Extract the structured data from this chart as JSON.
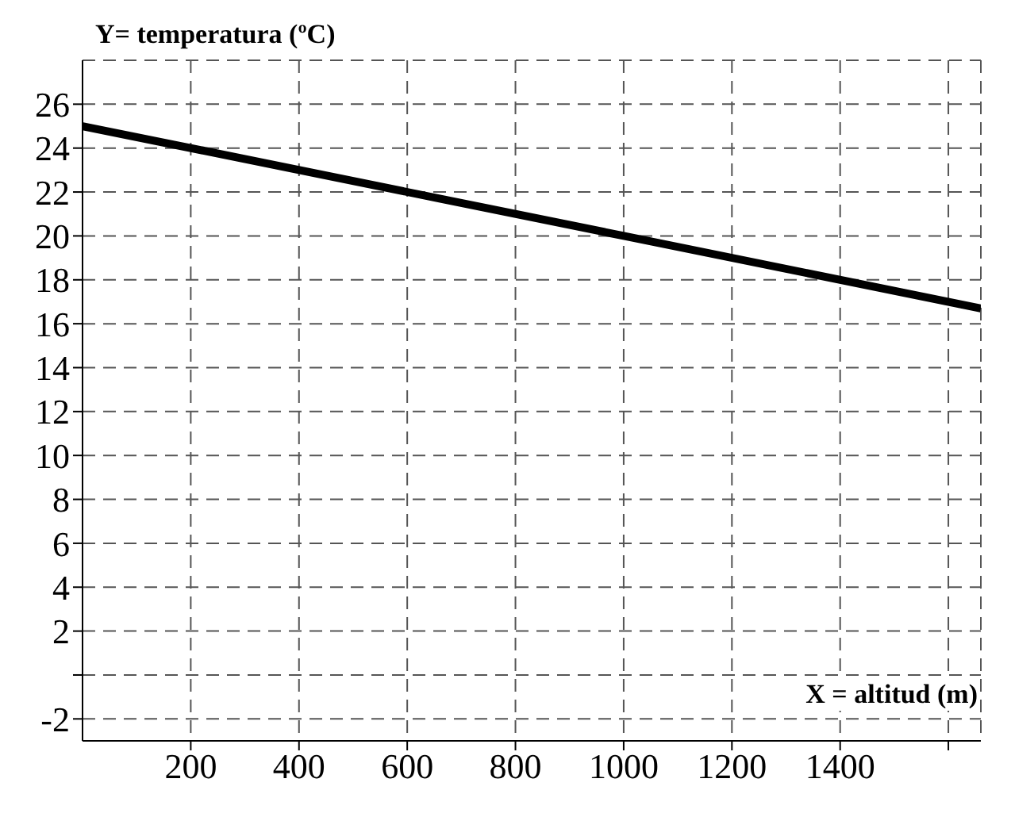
{
  "chart_data": {
    "type": "line",
    "xlabel": "X = altitud (m)",
    "ylabel": "Y= temperatura (ºC)",
    "x": [
      0,
      1000,
      1660
    ],
    "series": [
      {
        "color": "#000000",
        "values": [
          25,
          20,
          16.7
        ]
      }
    ],
    "xlim": [
      0,
      1660
    ],
    "xticks": [
      200,
      400,
      600,
      800,
      1000,
      1200,
      1400,
      {
        "value": 1600,
        "label": null
      }
    ],
    "ylim": [
      -3,
      28
    ],
    "yticks": [
      -2,
      {
        "value": 0,
        "label": null
      },
      2,
      4,
      6,
      8,
      10,
      12,
      14,
      16,
      18,
      20,
      22,
      24,
      26
    ],
    "grid": true,
    "marker": "none",
    "line_style": "solid"
  }
}
